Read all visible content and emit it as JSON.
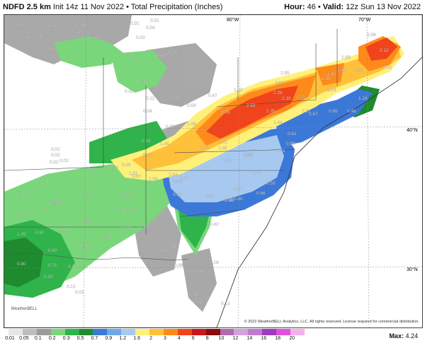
{
  "header": {
    "model": "NDFD 2.5 km",
    "init": "Init 14z 11 Nov 2022",
    "product": "Total Precipitation (Inches)",
    "hour_label": "Hour:",
    "hour": "46",
    "valid_label": "Valid:",
    "valid": "12z Sun 13 Nov 2022"
  },
  "map": {
    "graticule": {
      "lon_top": [
        "80°W",
        "70°W"
      ],
      "lat_right": [
        "40°N",
        "30°N"
      ]
    },
    "credit": "© 2022 WeatherBELL Analytics, LLC. All rights reserved. License required for commercial distribution.",
    "logo": "WeatherBELL",
    "labels": [
      "0.03",
      "0.09",
      "0.13",
      "0.01",
      "0.04",
      "0.05",
      "0.02",
      "0.02",
      "0.17",
      "0.01",
      "0.03",
      "0.12",
      "0.07",
      "0.03",
      "0.06",
      "0.27",
      "0.01",
      "0.15",
      "0.05",
      "0.11",
      "0.02",
      "0.04",
      "0.08",
      "0.47",
      "0.58",
      "1.48",
      "0.13",
      "1.46",
      "0.02",
      "0.02",
      "0.03",
      "0.02",
      "0.08",
      "0.02",
      "0.03",
      "0.06",
      "0.37",
      "1.51",
      "0.53",
      "1.06",
      "1.64",
      "1.41",
      "0.86",
      "0.83",
      "0.52",
      "0.28",
      "0.38",
      "0.06",
      "0.18",
      "0.22",
      "0.17",
      "0.05",
      "0.03",
      "0.12",
      "0.32",
      "0.22",
      "0.43",
      "0.29",
      "0.18",
      "0.20",
      "1.05",
      "0.97",
      "0.60",
      "0.19",
      "0.30",
      "0.80",
      "0.71",
      "0.20",
      "0.13",
      "0.02",
      "0.05",
      "0.32",
      "0.08",
      "0.26",
      "0.18",
      "0.02",
      "0.02",
      "0.12",
      "0.42",
      "0.81",
      "0.80",
      "0.33",
      "0.59",
      "0.66",
      "0.55",
      "0.71",
      "1.38",
      "1.45",
      "1.30",
      "1.74",
      "2.10",
      "2.78",
      "2.52",
      "2.35",
      "1.44",
      "2.28",
      "2.19",
      "2.64",
      "2.95",
      "1.53",
      "1.25",
      "1.27",
      "0.88",
      "0.41",
      "0.61",
      "0.67",
      "1.39",
      "1.40",
      "1.24",
      "1.58",
      "1.41",
      "1.51",
      "2.08",
      "2.12",
      "0.65",
      "0.48",
      "1.26",
      "1.51"
    ]
  },
  "legend": {
    "title": "Total Precipitation (Inches)",
    "ticks": [
      "0.01",
      "0.05",
      "0.1",
      "0.2",
      "0.3",
      "0.5",
      "0.7",
      "0.9",
      "1.2",
      "1.6",
      "2",
      "3",
      "4",
      "6",
      "8",
      "10",
      "12",
      "14",
      "16",
      "18",
      "20"
    ],
    "colors": [
      "#e6e6e6",
      "#bdbdbd",
      "#9a9a9a",
      "#7ad67a",
      "#2fb34a",
      "#1e8b2e",
      "#3c78d8",
      "#6fa8e8",
      "#a7c9f0",
      "#fff07a",
      "#ffc03a",
      "#ff8a1c",
      "#f0441c",
      "#c8161a",
      "#8a0a0e",
      "#b06ab0",
      "#d3a2d8",
      "#c27ad0",
      "#9a3cbc",
      "#e050d8",
      "#f4b0ec"
    ],
    "max_label": "Max:",
    "max_value": "4.24"
  }
}
